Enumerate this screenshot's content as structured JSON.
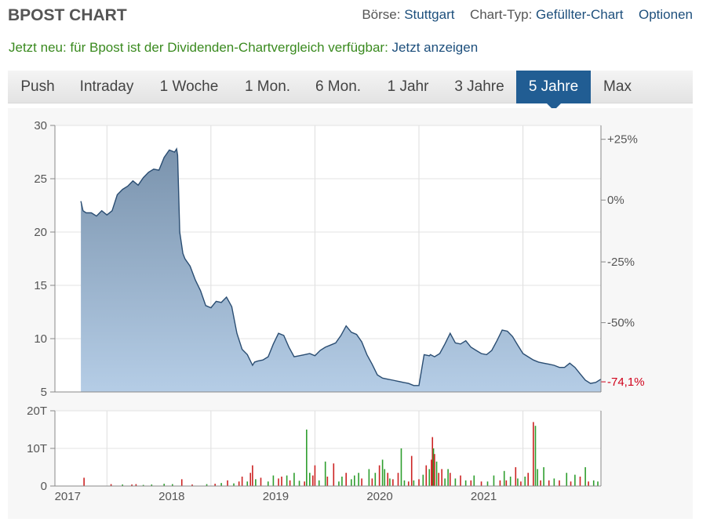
{
  "header": {
    "title": "BPOST CHART",
    "exchange_label": "Börse:",
    "exchange_value": "Stuttgart",
    "charttype_label": "Chart-Typ:",
    "charttype_value": "Gefüllter-Chart",
    "options_label": "Optionen"
  },
  "notice": {
    "text": "Jetzt neu: für Bpost ist der Dividenden-Chartvergleich verfügbar:",
    "link": "Jetzt anzeigen"
  },
  "tabs": [
    {
      "label": "Push",
      "active": false
    },
    {
      "label": "Intraday",
      "active": false
    },
    {
      "label": "1 Woche",
      "active": false
    },
    {
      "label": "1 Mon.",
      "active": false
    },
    {
      "label": "6 Mon.",
      "active": false
    },
    {
      "label": "1 Jahr",
      "active": false
    },
    {
      "label": "3 Jahre",
      "active": false
    },
    {
      "label": "5 Jahre",
      "active": true
    },
    {
      "label": "Max",
      "active": false
    }
  ],
  "chart_data": [
    {
      "type": "area",
      "name": "price",
      "x_tick_labels": [
        "2017",
        "2018",
        "2019",
        "2020",
        "2021"
      ],
      "x_tick_positions": [
        2017.0,
        2018.0,
        2019.0,
        2020.0,
        2021.0
      ],
      "xlim": [
        2016.5,
        2021.75
      ],
      "y_tick_labels": [
        "30",
        "25",
        "20",
        "15",
        "10",
        "5"
      ],
      "ylim": [
        5,
        30
      ],
      "right_tick_labels": [
        "+25%",
        "0%",
        "-25%",
        "-50%"
      ],
      "right_tick_values": [
        28.7,
        23.0,
        17.2,
        11.5
      ],
      "last_change_label": "-74,1%",
      "last_change_value": 5.95,
      "line_color": "#2a4d72",
      "fill_top_color": "#7a93ad",
      "fill_bottom_color": "#b5cde6",
      "change_color": "#d0021b",
      "grid": true,
      "series": [
        {
          "x": [
            2016.75,
            2016.77,
            2016.8,
            2016.85,
            2016.9,
            2016.95,
            2017.0,
            2017.05,
            2017.1,
            2017.15,
            2017.2,
            2017.25,
            2017.3,
            2017.35,
            2017.4,
            2017.45,
            2017.5,
            2017.55,
            2017.6,
            2017.65,
            2017.67,
            2017.68,
            2017.7,
            2017.73,
            2017.75,
            2017.8,
            2017.85,
            2017.9,
            2017.95,
            2018.0,
            2018.05,
            2018.1,
            2018.15,
            2018.2,
            2018.25,
            2018.3,
            2018.35,
            2018.4,
            2018.42,
            2018.45,
            2018.5,
            2018.55,
            2018.6,
            2018.65,
            2018.7,
            2018.75,
            2018.8,
            2018.85,
            2018.9,
            2018.95,
            2019.0,
            2019.05,
            2019.1,
            2019.15,
            2019.2,
            2019.25,
            2019.3,
            2019.35,
            2019.4,
            2019.45,
            2019.5,
            2019.55,
            2019.6,
            2019.65,
            2019.7,
            2019.75,
            2019.8,
            2019.85,
            2019.9,
            2019.95,
            2020.0,
            2020.05,
            2020.1,
            2020.11,
            2020.15,
            2020.2,
            2020.25,
            2020.3,
            2020.35,
            2020.4,
            2020.45,
            2020.5,
            2020.55,
            2020.6,
            2020.65,
            2020.7,
            2020.75,
            2020.8,
            2020.85,
            2020.9,
            2020.95,
            2021.0,
            2021.05,
            2021.1,
            2021.15,
            2021.2,
            2021.25,
            2021.3,
            2021.35,
            2021.4,
            2021.45,
            2021.5,
            2021.55,
            2021.6,
            2021.65,
            2021.7,
            2021.75
          ],
          "y": [
            22.9,
            22.0,
            21.8,
            21.8,
            21.5,
            22.0,
            21.6,
            22.0,
            23.5,
            24.0,
            24.3,
            24.8,
            24.4,
            25.1,
            25.6,
            25.9,
            25.8,
            27.0,
            27.7,
            27.5,
            27.8,
            27.2,
            20.0,
            18.0,
            17.5,
            16.8,
            15.5,
            14.5,
            13.1,
            12.9,
            13.5,
            13.4,
            13.9,
            13.0,
            10.5,
            9.0,
            8.5,
            7.5,
            7.8,
            7.9,
            8.0,
            8.3,
            9.5,
            10.5,
            10.3,
            9.2,
            8.3,
            8.4,
            8.5,
            8.6,
            8.4,
            8.9,
            9.2,
            9.4,
            9.6,
            10.3,
            11.2,
            10.6,
            10.4,
            9.7,
            8.5,
            7.6,
            6.6,
            6.3,
            6.2,
            6.1,
            6.0,
            5.9,
            5.8,
            5.6,
            5.6,
            8.5,
            8.4,
            8.5,
            8.3,
            8.6,
            9.5,
            10.5,
            9.6,
            9.5,
            9.8,
            9.2,
            8.9,
            8.6,
            8.5,
            8.9,
            9.8,
            10.8,
            10.7,
            10.2,
            9.4,
            8.6,
            8.3,
            8.0,
            7.8,
            7.7,
            7.6,
            7.5,
            7.3,
            7.3,
            7.7,
            7.3,
            6.7,
            6.1,
            5.8,
            5.9,
            6.2
          ]
        }
      ]
    },
    {
      "type": "bar",
      "name": "volume",
      "x_tick_labels": [
        "2017",
        "2018",
        "2019",
        "2020",
        "2021"
      ],
      "xlim": [
        2016.5,
        2021.75
      ],
      "y_tick_labels": [
        "20T",
        "10T",
        "0"
      ],
      "ylim": [
        0,
        20000
      ],
      "grid": true,
      "up_color": "#2e9e2e",
      "down_color": "#cc2222",
      "bars": [
        {
          "x": 2016.78,
          "v": 2200,
          "c": "down"
        },
        {
          "x": 2017.04,
          "v": 500,
          "c": "down"
        },
        {
          "x": 2017.15,
          "v": 400,
          "c": "up"
        },
        {
          "x": 2017.24,
          "v": 400,
          "c": "down"
        },
        {
          "x": 2017.28,
          "v": 500,
          "c": "down"
        },
        {
          "x": 2017.35,
          "v": 300,
          "c": "up"
        },
        {
          "x": 2017.43,
          "v": 400,
          "c": "up"
        },
        {
          "x": 2017.55,
          "v": 600,
          "c": "up"
        },
        {
          "x": 2017.63,
          "v": 500,
          "c": "up"
        },
        {
          "x": 2017.72,
          "v": 1800,
          "c": "down"
        },
        {
          "x": 2017.82,
          "v": 400,
          "c": "down"
        },
        {
          "x": 2017.96,
          "v": 500,
          "c": "up"
        },
        {
          "x": 2018.04,
          "v": 600,
          "c": "down"
        },
        {
          "x": 2018.1,
          "v": 800,
          "c": "up"
        },
        {
          "x": 2018.16,
          "v": 1500,
          "c": "down"
        },
        {
          "x": 2018.22,
          "v": 700,
          "c": "up"
        },
        {
          "x": 2018.27,
          "v": 1200,
          "c": "down"
        },
        {
          "x": 2018.3,
          "v": 2500,
          "c": "down"
        },
        {
          "x": 2018.35,
          "v": 1200,
          "c": "up"
        },
        {
          "x": 2018.38,
          "v": 3500,
          "c": "down"
        },
        {
          "x": 2018.4,
          "v": 5500,
          "c": "down"
        },
        {
          "x": 2018.43,
          "v": 1800,
          "c": "up"
        },
        {
          "x": 2018.48,
          "v": 2200,
          "c": "down"
        },
        {
          "x": 2018.55,
          "v": 1200,
          "c": "up"
        },
        {
          "x": 2018.6,
          "v": 2800,
          "c": "up"
        },
        {
          "x": 2018.65,
          "v": 2000,
          "c": "down"
        },
        {
          "x": 2018.68,
          "v": 2500,
          "c": "down"
        },
        {
          "x": 2018.73,
          "v": 2800,
          "c": "up"
        },
        {
          "x": 2018.76,
          "v": 1500,
          "c": "down"
        },
        {
          "x": 2018.8,
          "v": 3500,
          "c": "up"
        },
        {
          "x": 2018.85,
          "v": 1400,
          "c": "up"
        },
        {
          "x": 2018.9,
          "v": 1200,
          "c": "down"
        },
        {
          "x": 2018.92,
          "v": 15000,
          "c": "up"
        },
        {
          "x": 2018.95,
          "v": 3500,
          "c": "up"
        },
        {
          "x": 2018.98,
          "v": 2800,
          "c": "down"
        },
        {
          "x": 2019.0,
          "v": 5500,
          "c": "down"
        },
        {
          "x": 2019.04,
          "v": 1500,
          "c": "up"
        },
        {
          "x": 2019.1,
          "v": 6500,
          "c": "up"
        },
        {
          "x": 2019.12,
          "v": 2500,
          "c": "down"
        },
        {
          "x": 2019.18,
          "v": 6000,
          "c": "down"
        },
        {
          "x": 2019.23,
          "v": 1200,
          "c": "up"
        },
        {
          "x": 2019.26,
          "v": 2500,
          "c": "up"
        },
        {
          "x": 2019.3,
          "v": 3500,
          "c": "down"
        },
        {
          "x": 2019.35,
          "v": 1800,
          "c": "up"
        },
        {
          "x": 2019.38,
          "v": 2800,
          "c": "up"
        },
        {
          "x": 2019.42,
          "v": 3500,
          "c": "up"
        },
        {
          "x": 2019.45,
          "v": 2000,
          "c": "down"
        },
        {
          "x": 2019.52,
          "v": 4500,
          "c": "up"
        },
        {
          "x": 2019.55,
          "v": 2000,
          "c": "down"
        },
        {
          "x": 2019.58,
          "v": 3500,
          "c": "up"
        },
        {
          "x": 2019.62,
          "v": 5500,
          "c": "down"
        },
        {
          "x": 2019.65,
          "v": 7000,
          "c": "up"
        },
        {
          "x": 2019.67,
          "v": 4500,
          "c": "up"
        },
        {
          "x": 2019.7,
          "v": 3500,
          "c": "down"
        },
        {
          "x": 2019.72,
          "v": 2000,
          "c": "up"
        },
        {
          "x": 2019.75,
          "v": 1800,
          "c": "down"
        },
        {
          "x": 2019.8,
          "v": 3500,
          "c": "down"
        },
        {
          "x": 2019.83,
          "v": 10000,
          "c": "up"
        },
        {
          "x": 2019.86,
          "v": 1500,
          "c": "up"
        },
        {
          "x": 2019.9,
          "v": 1200,
          "c": "down"
        },
        {
          "x": 2019.93,
          "v": 8000,
          "c": "down"
        },
        {
          "x": 2019.95,
          "v": 1500,
          "c": "up"
        },
        {
          "x": 2020.0,
          "v": 1800,
          "c": "down"
        },
        {
          "x": 2020.04,
          "v": 3000,
          "c": "up"
        },
        {
          "x": 2020.07,
          "v": 5500,
          "c": "down"
        },
        {
          "x": 2020.1,
          "v": 4500,
          "c": "up"
        },
        {
          "x": 2020.12,
          "v": 7000,
          "c": "down"
        },
        {
          "x": 2020.13,
          "v": 13000,
          "c": "down"
        },
        {
          "x": 2020.14,
          "v": 10000,
          "c": "up"
        },
        {
          "x": 2020.15,
          "v": 8500,
          "c": "down"
        },
        {
          "x": 2020.17,
          "v": 6500,
          "c": "up"
        },
        {
          "x": 2020.19,
          "v": 3500,
          "c": "down"
        },
        {
          "x": 2020.22,
          "v": 4500,
          "c": "down"
        },
        {
          "x": 2020.25,
          "v": 2000,
          "c": "up"
        },
        {
          "x": 2020.28,
          "v": 4500,
          "c": "up"
        },
        {
          "x": 2020.3,
          "v": 3500,
          "c": "down"
        },
        {
          "x": 2020.35,
          "v": 2000,
          "c": "up"
        },
        {
          "x": 2020.4,
          "v": 2800,
          "c": "down"
        },
        {
          "x": 2020.45,
          "v": 1500,
          "c": "up"
        },
        {
          "x": 2020.5,
          "v": 1500,
          "c": "down"
        },
        {
          "x": 2020.53,
          "v": 2800,
          "c": "up"
        },
        {
          "x": 2020.6,
          "v": 1200,
          "c": "down"
        },
        {
          "x": 2020.66,
          "v": 1200,
          "c": "up"
        },
        {
          "x": 2020.72,
          "v": 2800,
          "c": "up"
        },
        {
          "x": 2020.78,
          "v": 1500,
          "c": "down"
        },
        {
          "x": 2020.82,
          "v": 4000,
          "c": "up"
        },
        {
          "x": 2020.84,
          "v": 1500,
          "c": "down"
        },
        {
          "x": 2020.88,
          "v": 2500,
          "c": "up"
        },
        {
          "x": 2020.93,
          "v": 5000,
          "c": "down"
        },
        {
          "x": 2020.95,
          "v": 2000,
          "c": "up"
        },
        {
          "x": 2020.98,
          "v": 1200,
          "c": "down"
        },
        {
          "x": 2021.02,
          "v": 2500,
          "c": "up"
        },
        {
          "x": 2021.05,
          "v": 3500,
          "c": "down"
        },
        {
          "x": 2021.1,
          "v": 17000,
          "c": "down"
        },
        {
          "x": 2021.12,
          "v": 16000,
          "c": "up"
        },
        {
          "x": 2021.14,
          "v": 4500,
          "c": "up"
        },
        {
          "x": 2021.17,
          "v": 1500,
          "c": "down"
        },
        {
          "x": 2021.2,
          "v": 5000,
          "c": "up"
        },
        {
          "x": 2021.25,
          "v": 1500,
          "c": "down"
        },
        {
          "x": 2021.3,
          "v": 2000,
          "c": "up"
        },
        {
          "x": 2021.35,
          "v": 1500,
          "c": "down"
        },
        {
          "x": 2021.42,
          "v": 3500,
          "c": "up"
        },
        {
          "x": 2021.46,
          "v": 1200,
          "c": "down"
        },
        {
          "x": 2021.5,
          "v": 3000,
          "c": "up"
        },
        {
          "x": 2021.55,
          "v": 2500,
          "c": "down"
        },
        {
          "x": 2021.6,
          "v": 5000,
          "c": "up"
        },
        {
          "x": 2021.63,
          "v": 1200,
          "c": "down"
        },
        {
          "x": 2021.68,
          "v": 1500,
          "c": "up"
        },
        {
          "x": 2021.72,
          "v": 1200,
          "c": "up"
        }
      ]
    }
  ]
}
